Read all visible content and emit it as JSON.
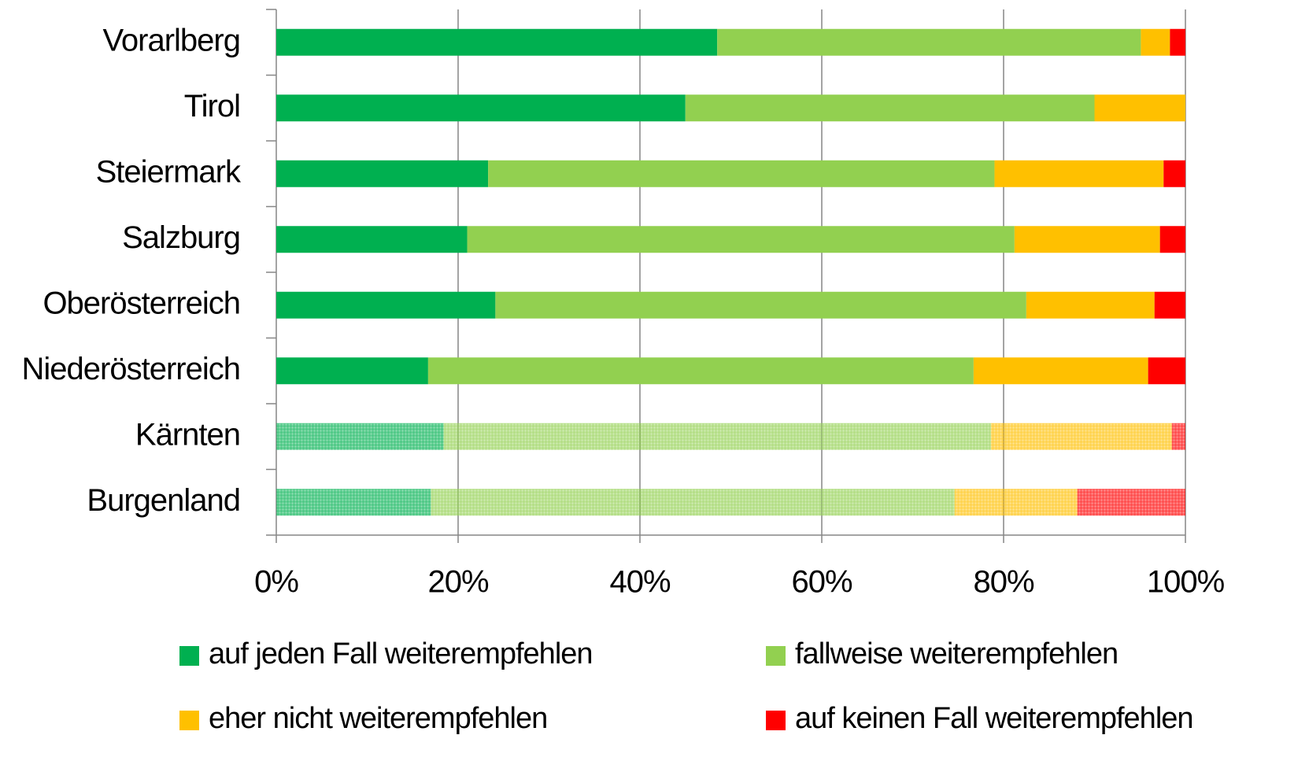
{
  "chart_data": {
    "type": "stacked_barh",
    "categories": [
      "Vorarlberg",
      "Tirol",
      "Steiermark",
      "Salzburg",
      "Oberösterreich",
      "Niederösterreich",
      "Kärnten",
      "Burgenland"
    ],
    "series": [
      {
        "name": "auf jeden Fall weiterempfehlen",
        "color": "#00b050",
        "values": [
          48.5,
          45.0,
          23.3,
          21.0,
          24.1,
          16.7,
          18.4,
          17.0
        ]
      },
      {
        "name": "fallweise weiterempfehlen",
        "color": "#92d050",
        "values": [
          46.6,
          45.0,
          55.7,
          60.2,
          58.4,
          60.0,
          60.2,
          57.6
        ]
      },
      {
        "name": "eher nicht weiterempfehlen",
        "color": "#ffc000",
        "values": [
          3.2,
          10.0,
          18.6,
          16.0,
          14.1,
          19.2,
          19.9,
          13.5
        ]
      },
      {
        "name": "auf keinen Fall weiterempfehlen",
        "color": "#ff0000",
        "values": [
          1.7,
          0,
          2.4,
          2.8,
          3.4,
          4.1,
          1.5,
          11.9
        ]
      }
    ],
    "hatched": [
      false,
      false,
      false,
      false,
      false,
      false,
      true,
      true
    ],
    "xlim": [
      0,
      100
    ],
    "xticks": [
      {
        "value": 0,
        "label": "0%"
      },
      {
        "value": 20,
        "label": "20%"
      },
      {
        "value": 40,
        "label": "40%"
      },
      {
        "value": 60,
        "label": "60%"
      },
      {
        "value": 80,
        "label": "80%"
      },
      {
        "value": 100,
        "label": "100%"
      }
    ],
    "grid": true,
    "legend": "bottom"
  }
}
